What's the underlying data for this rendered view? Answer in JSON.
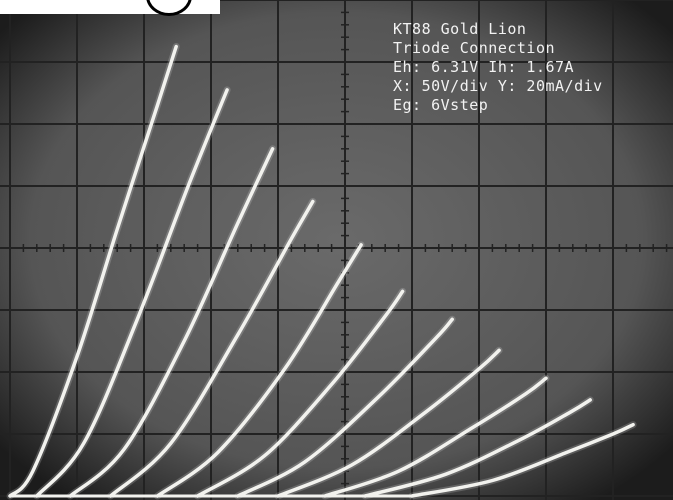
{
  "chart_data": {
    "type": "line",
    "title": "KT88 Gold Lion",
    "subtitle": "Triode Connection",
    "annotations": [
      "Eh: 6.31V Ih: 1.67A",
      "X: 50V/div Y: 20mA/div",
      "Eg: 6Vstep"
    ],
    "xlabel": "",
    "ylabel": "",
    "x_unit": "V",
    "y_unit": "mA",
    "x_per_div": 50,
    "y_per_div": 20,
    "xlim": [
      0,
      500
    ],
    "ylim": [
      0,
      160
    ],
    "grid": true,
    "series": [
      {
        "x": [
          0,
          17,
          50,
          80,
          110,
          124
        ],
        "y": [
          0,
          8,
          45,
          86,
          126,
          145
        ]
      },
      {
        "x": [
          20,
          55,
          95,
          133,
          162
        ],
        "y": [
          0,
          17,
          57,
          100,
          131
        ]
      },
      {
        "x": [
          45,
          85,
          130,
          170,
          196
        ],
        "y": [
          0,
          15,
          50,
          88,
          112
        ]
      },
      {
        "x": [
          75,
          120,
          170,
          210,
          226
        ],
        "y": [
          0,
          17,
          52,
          83,
          95
        ]
      },
      {
        "x": [
          110,
          155,
          205,
          245,
          262
        ],
        "y": [
          0,
          14,
          41,
          69,
          81
        ]
      },
      {
        "x": [
          140,
          190,
          240,
          280,
          293
        ],
        "y": [
          0,
          13,
          36,
          58,
          66
        ]
      },
      {
        "x": [
          170,
          220,
          275,
          318,
          330
        ],
        "y": [
          0,
          11,
          32,
          51,
          57
        ]
      },
      {
        "x": [
          200,
          255,
          310,
          350,
          365
        ],
        "y": [
          0,
          10,
          27,
          41,
          47
        ]
      },
      {
        "x": [
          235,
          290,
          345,
          385,
          400
        ],
        "y": [
          0,
          8,
          22,
          33,
          38
        ]
      },
      {
        "x": [
          265,
          325,
          380,
          418,
          433
        ],
        "y": [
          0,
          7,
          18,
          27,
          31
        ]
      },
      {
        "x": [
          300,
          360,
          415,
          450,
          465
        ],
        "y": [
          0,
          5,
          14,
          20,
          23
        ]
      }
    ],
    "colors": {
      "screen": "#555555",
      "grid": "#222222",
      "trace": "#f2f2ee",
      "text": "#f2f2f2"
    }
  }
}
